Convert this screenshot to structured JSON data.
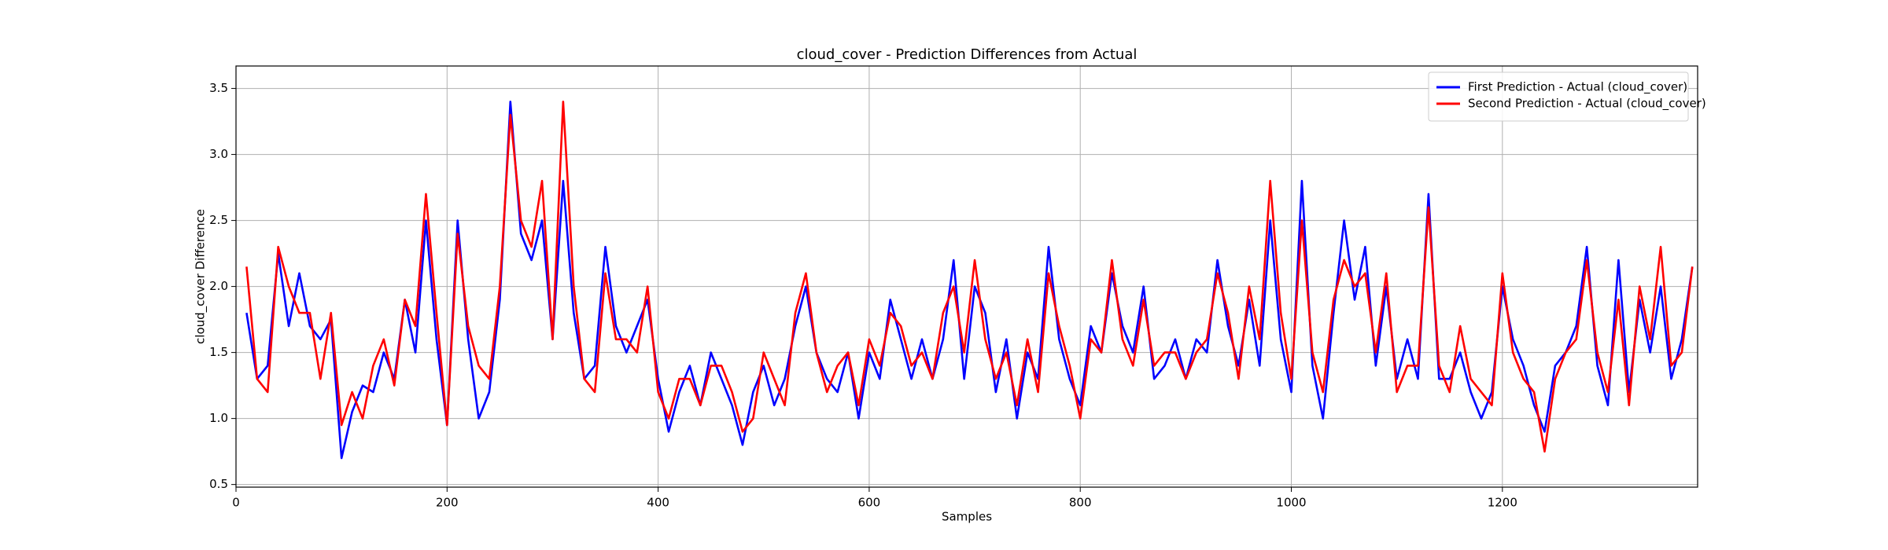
{
  "chart_data": {
    "type": "line",
    "title": "cloud_cover - Prediction Differences from Actual",
    "xlabel": "Samples",
    "ylabel": "cloud_cover Difference",
    "x": [
      10,
      20,
      30,
      40,
      50,
      60,
      70,
      80,
      90,
      100,
      110,
      120,
      130,
      140,
      150,
      160,
      170,
      180,
      190,
      200,
      210,
      220,
      230,
      240,
      250,
      260,
      270,
      280,
      290,
      300,
      310,
      320,
      330,
      340,
      350,
      360,
      370,
      380,
      390,
      400,
      410,
      420,
      430,
      440,
      450,
      460,
      470,
      480,
      490,
      500,
      510,
      520,
      530,
      540,
      550,
      560,
      570,
      580,
      590,
      600,
      610,
      620,
      630,
      640,
      650,
      660,
      670,
      680,
      690,
      700,
      710,
      720,
      730,
      740,
      750,
      760,
      770,
      780,
      790,
      800,
      810,
      820,
      830,
      840,
      850,
      860,
      870,
      880,
      890,
      900,
      910,
      920,
      930,
      940,
      950,
      960,
      970,
      980,
      990,
      1000,
      1010,
      1020,
      1030,
      1040,
      1050,
      1060,
      1070,
      1080,
      1090,
      1100,
      1110,
      1120,
      1130,
      1140,
      1150,
      1160,
      1170,
      1180,
      1190,
      1200,
      1210,
      1220,
      1230,
      1240,
      1250,
      1260,
      1270,
      1280,
      1290,
      1300,
      1310,
      1320,
      1330,
      1340,
      1350,
      1360,
      1370,
      1380
    ],
    "series": [
      {
        "name": "First Prediction - Actual (cloud_cover)",
        "color": "#0000ff",
        "values": [
          1.8,
          1.3,
          1.4,
          2.25,
          1.7,
          2.1,
          1.7,
          1.6,
          1.75,
          0.7,
          1.05,
          1.25,
          1.2,
          1.5,
          1.3,
          1.9,
          1.5,
          2.5,
          1.6,
          0.95,
          2.5,
          1.6,
          1.0,
          1.2,
          1.9,
          3.4,
          2.4,
          2.2,
          2.5,
          1.6,
          2.8,
          1.8,
          1.3,
          1.4,
          2.3,
          1.7,
          1.5,
          1.7,
          1.9,
          1.3,
          0.9,
          1.2,
          1.4,
          1.1,
          1.5,
          1.3,
          1.1,
          0.8,
          1.2,
          1.4,
          1.1,
          1.3,
          1.7,
          2.0,
          1.5,
          1.3,
          1.2,
          1.5,
          1.0,
          1.5,
          1.3,
          1.9,
          1.6,
          1.3,
          1.6,
          1.3,
          1.6,
          2.2,
          1.3,
          2.0,
          1.8,
          1.2,
          1.6,
          1.0,
          1.5,
          1.3,
          2.3,
          1.6,
          1.3,
          1.1,
          1.7,
          1.5,
          2.1,
          1.7,
          1.5,
          2.0,
          1.3,
          1.4,
          1.6,
          1.3,
          1.6,
          1.5,
          2.2,
          1.7,
          1.4,
          1.9,
          1.4,
          2.5,
          1.6,
          1.2,
          2.8,
          1.4,
          1.0,
          1.8,
          2.5,
          1.9,
          2.3,
          1.4,
          2.0,
          1.3,
          1.6,
          1.3,
          2.7,
          1.3,
          1.3,
          1.5,
          1.2,
          1.0,
          1.2,
          2.0,
          1.6,
          1.4,
          1.1,
          0.9,
          1.4,
          1.5,
          1.7,
          2.3,
          1.4,
          1.1,
          2.2,
          1.2,
          1.9,
          1.5,
          2.0,
          1.3,
          1.6,
          2.15
        ]
      },
      {
        "name": "Second Prediction - Actual (cloud_cover)",
        "color": "#ff0000",
        "values": [
          2.15,
          1.3,
          1.2,
          2.3,
          2.0,
          1.8,
          1.8,
          1.3,
          1.8,
          0.95,
          1.2,
          1.0,
          1.4,
          1.6,
          1.25,
          1.9,
          1.7,
          2.7,
          1.8,
          0.95,
          2.4,
          1.7,
          1.4,
          1.3,
          2.0,
          3.3,
          2.5,
          2.3,
          2.8,
          1.6,
          3.4,
          2.0,
          1.3,
          1.2,
          2.1,
          1.6,
          1.6,
          1.5,
          2.0,
          1.2,
          1.0,
          1.3,
          1.3,
          1.1,
          1.4,
          1.4,
          1.2,
          0.9,
          1.0,
          1.5,
          1.3,
          1.1,
          1.8,
          2.1,
          1.5,
          1.2,
          1.4,
          1.5,
          1.1,
          1.6,
          1.4,
          1.8,
          1.7,
          1.4,
          1.5,
          1.3,
          1.8,
          2.0,
          1.5,
          2.2,
          1.6,
          1.3,
          1.5,
          1.1,
          1.6,
          1.2,
          2.1,
          1.7,
          1.4,
          1.0,
          1.6,
          1.5,
          2.2,
          1.6,
          1.4,
          1.9,
          1.4,
          1.5,
          1.5,
          1.3,
          1.5,
          1.6,
          2.1,
          1.8,
          1.3,
          2.0,
          1.6,
          2.8,
          1.8,
          1.3,
          2.5,
          1.5,
          1.2,
          1.9,
          2.2,
          2.0,
          2.1,
          1.5,
          2.1,
          1.2,
          1.4,
          1.4,
          2.6,
          1.4,
          1.2,
          1.7,
          1.3,
          1.2,
          1.1,
          2.1,
          1.5,
          1.3,
          1.2,
          0.75,
          1.3,
          1.5,
          1.6,
          2.2,
          1.5,
          1.2,
          1.9,
          1.1,
          2.0,
          1.6,
          2.3,
          1.4,
          1.5,
          2.15
        ]
      }
    ],
    "xlim": [
      0,
      1385
    ],
    "ylim": [
      0.48,
      3.67
    ],
    "xticks": [
      0,
      200,
      400,
      600,
      800,
      1000,
      1200
    ],
    "yticks": [
      0.5,
      {
        "value": 1.0,
        "label": "1.0"
      },
      1.5,
      {
        "value": 2.0,
        "label": "2.0"
      },
      2.5,
      {
        "value": 3.0,
        "label": "3.0"
      },
      3.5
    ],
    "grid": true,
    "legend": "upper-right"
  }
}
